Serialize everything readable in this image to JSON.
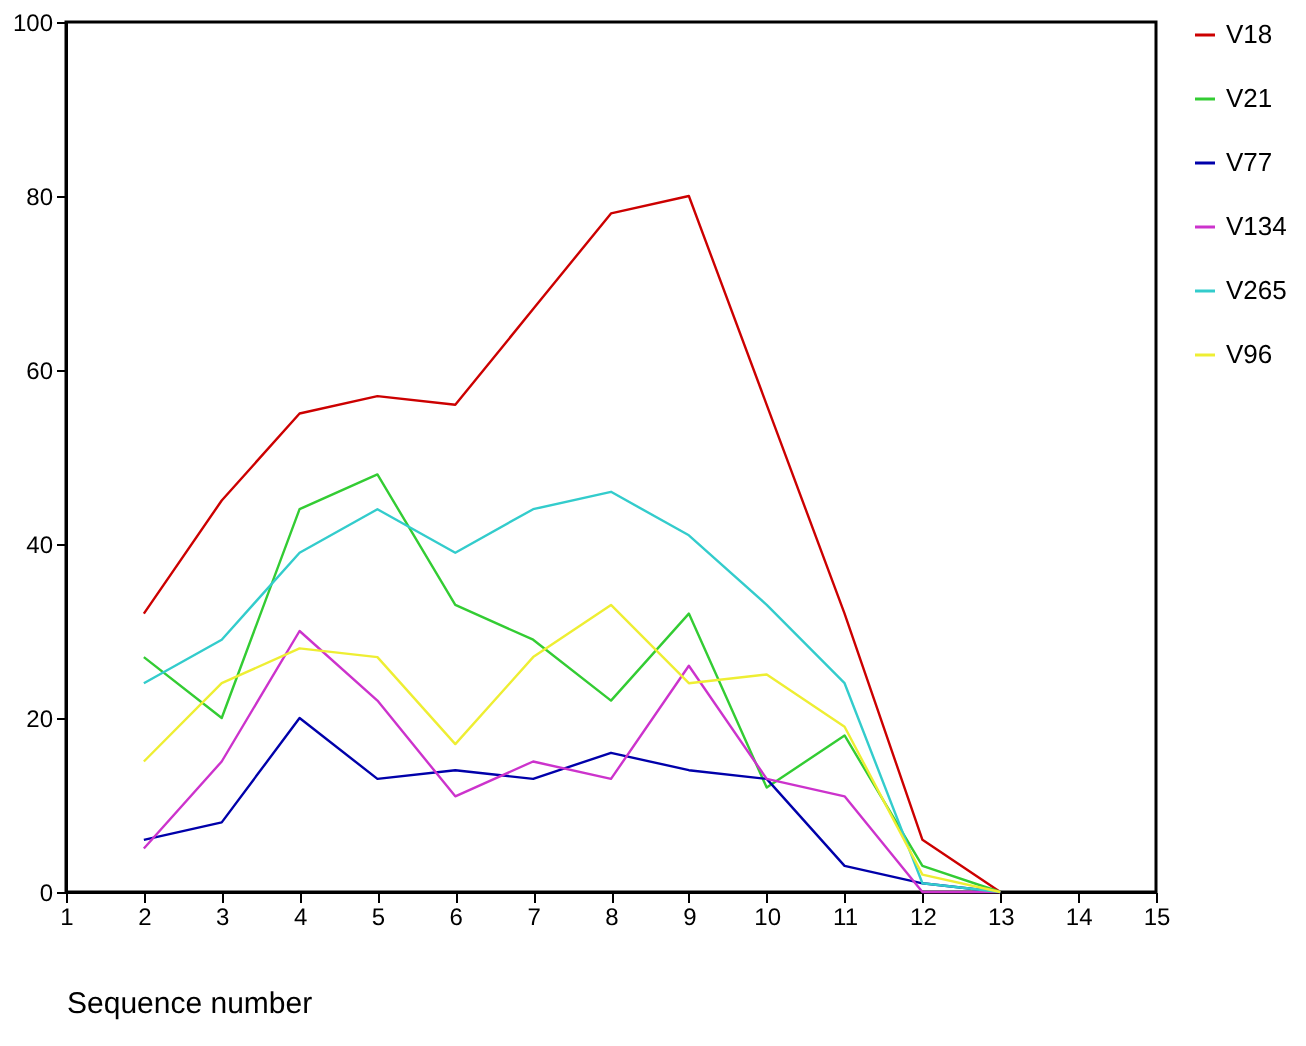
{
  "chart_data": {
    "type": "line",
    "xlabel": "Sequence number",
    "x": [
      2,
      3,
      4,
      5,
      6,
      7,
      8,
      9,
      10,
      11,
      12,
      13
    ],
    "series": [
      {
        "name": "V18",
        "color": "#cc0000",
        "values": [
          32,
          45,
          55,
          57,
          56,
          67,
          78,
          80,
          56,
          32,
          6,
          0
        ]
      },
      {
        "name": "V21",
        "color": "#33cc33",
        "values": [
          27,
          20,
          44,
          48,
          33,
          29,
          22,
          32,
          12,
          18,
          3,
          0
        ]
      },
      {
        "name": "V77",
        "color": "#0000aa",
        "values": [
          6,
          8,
          20,
          13,
          14,
          13,
          16,
          14,
          13,
          3,
          1,
          0
        ]
      },
      {
        "name": "V134",
        "color": "#cc33cc",
        "values": [
          5,
          15,
          30,
          22,
          11,
          15,
          13,
          26,
          13,
          11,
          0,
          0
        ]
      },
      {
        "name": "V265",
        "color": "#33cccc",
        "values": [
          24,
          29,
          39,
          44,
          39,
          44,
          46,
          41,
          33,
          24,
          1,
          0
        ]
      },
      {
        "name": "V96",
        "color": "#eeee33",
        "values": [
          15,
          24,
          28,
          27,
          17,
          27,
          33,
          24,
          25,
          19,
          2,
          0
        ]
      }
    ],
    "xlim": [
      1,
      15
    ],
    "xticks": [
      1,
      2,
      3,
      4,
      5,
      6,
      7,
      8,
      9,
      10,
      11,
      12,
      13,
      14,
      15
    ],
    "ylim": [
      0,
      100
    ],
    "yticks": [
      0,
      20,
      40,
      60,
      80,
      100
    ],
    "grid": false,
    "legend": "right",
    "marker": "none",
    "line_style": "solid"
  }
}
